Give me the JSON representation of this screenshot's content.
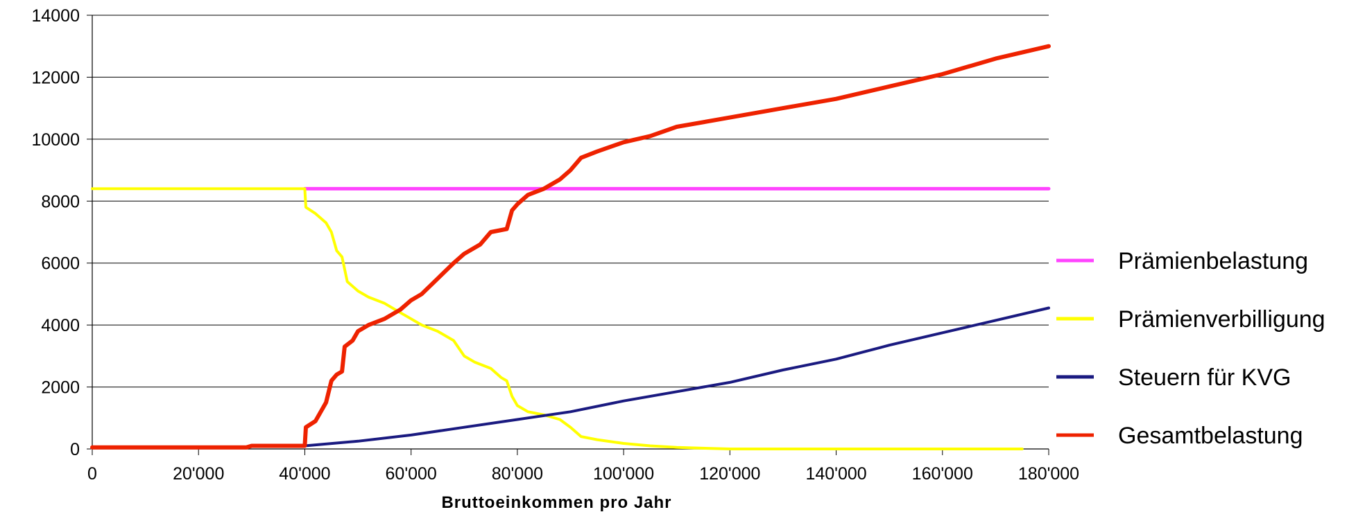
{
  "chart_data": {
    "type": "line",
    "title": "",
    "xlabel": "Bruttoeinkommen pro Jahr",
    "ylabel": "",
    "xlim": [
      0,
      180000
    ],
    "ylim": [
      0,
      14000
    ],
    "x_ticks": [
      "0",
      "20'000",
      "40'000",
      "60'000",
      "80'000",
      "100'000",
      "120'000",
      "140'000",
      "160'000",
      "180'000"
    ],
    "y_ticks": [
      "0",
      "2000",
      "4000",
      "6000",
      "8000",
      "10000",
      "12000",
      "14000"
    ],
    "grid": "horizontal",
    "legend_position": "right",
    "series": [
      {
        "name": "Prämienbelastung",
        "color": "#ff44ff",
        "points": [
          [
            40000,
            8400
          ],
          [
            180000,
            8400
          ]
        ]
      },
      {
        "name": "Prämienverbilligung",
        "color": "#ffff00",
        "points": [
          [
            0,
            8400
          ],
          [
            40000,
            8400
          ],
          [
            40200,
            7800
          ],
          [
            42000,
            7600
          ],
          [
            44000,
            7300
          ],
          [
            45000,
            7000
          ],
          [
            46000,
            6400
          ],
          [
            47000,
            6200
          ],
          [
            48000,
            5400
          ],
          [
            50000,
            5100
          ],
          [
            52000,
            4900
          ],
          [
            55000,
            4700
          ],
          [
            58000,
            4400
          ],
          [
            60000,
            4200
          ],
          [
            62000,
            4000
          ],
          [
            65000,
            3800
          ],
          [
            68000,
            3500
          ],
          [
            70000,
            3000
          ],
          [
            72000,
            2800
          ],
          [
            75000,
            2600
          ],
          [
            77000,
            2300
          ],
          [
            78000,
            2200
          ],
          [
            79000,
            1700
          ],
          [
            80000,
            1400
          ],
          [
            82000,
            1200
          ],
          [
            85000,
            1100
          ],
          [
            88000,
            950
          ],
          [
            90000,
            700
          ],
          [
            92000,
            400
          ],
          [
            95000,
            300
          ],
          [
            100000,
            180
          ],
          [
            105000,
            100
          ],
          [
            110000,
            50
          ],
          [
            120000,
            0
          ],
          [
            175000,
            0
          ]
        ]
      },
      {
        "name": "Steuern für KVG",
        "color": "#1a1a80",
        "points": [
          [
            40000,
            100
          ],
          [
            50000,
            250
          ],
          [
            60000,
            450
          ],
          [
            70000,
            700
          ],
          [
            80000,
            950
          ],
          [
            90000,
            1200
          ],
          [
            100000,
            1550
          ],
          [
            110000,
            1850
          ],
          [
            120000,
            2150
          ],
          [
            130000,
            2550
          ],
          [
            140000,
            2900
          ],
          [
            150000,
            3350
          ],
          [
            160000,
            3750
          ],
          [
            170000,
            4150
          ],
          [
            180000,
            4550
          ]
        ]
      },
      {
        "name": "Gesamtbelastung",
        "color": "#ee2200",
        "points": [
          [
            0,
            50
          ],
          [
            29000,
            50
          ],
          [
            30000,
            100
          ],
          [
            40000,
            100
          ],
          [
            40200,
            700
          ],
          [
            42000,
            900
          ],
          [
            44000,
            1500
          ],
          [
            45000,
            2200
          ],
          [
            46000,
            2400
          ],
          [
            47000,
            2500
          ],
          [
            47500,
            3300
          ],
          [
            49000,
            3500
          ],
          [
            50000,
            3800
          ],
          [
            52000,
            4000
          ],
          [
            55000,
            4200
          ],
          [
            58000,
            4500
          ],
          [
            60000,
            4800
          ],
          [
            62000,
            5000
          ],
          [
            65000,
            5500
          ],
          [
            68000,
            6000
          ],
          [
            70000,
            6300
          ],
          [
            73000,
            6600
          ],
          [
            75000,
            7000
          ],
          [
            78000,
            7100
          ],
          [
            79000,
            7700
          ],
          [
            80000,
            7900
          ],
          [
            82000,
            8200
          ],
          [
            85000,
            8400
          ],
          [
            88000,
            8700
          ],
          [
            90000,
            9000
          ],
          [
            92000,
            9400
          ],
          [
            95000,
            9600
          ],
          [
            100000,
            9900
          ],
          [
            105000,
            10100
          ],
          [
            110000,
            10400
          ],
          [
            120000,
            10700
          ],
          [
            130000,
            11000
          ],
          [
            140000,
            11300
          ],
          [
            150000,
            11700
          ],
          [
            160000,
            12100
          ],
          [
            170000,
            12600
          ],
          [
            180000,
            13000
          ]
        ]
      }
    ]
  }
}
